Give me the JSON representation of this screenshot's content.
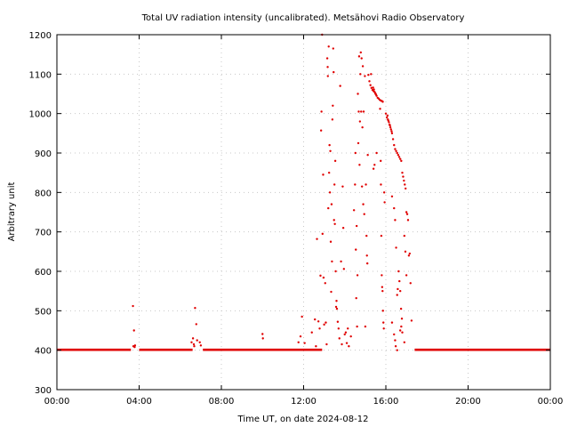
{
  "chart_data": {
    "type": "scatter",
    "title": "Total UV radiation intensity (uncalibrated). Metsähovi Radio Observatory",
    "xlabel": "Time UT, on date 2024-08-12",
    "ylabel": "Arbitrary unit",
    "xlim": [
      0,
      24
    ],
    "ylim": [
      300,
      1200
    ],
    "x_ticks": [
      0,
      4,
      8,
      12,
      16,
      20,
      24
    ],
    "x_tick_labels": [
      "00:00",
      "04:00",
      "08:00",
      "12:00",
      "16:00",
      "20:00",
      "00:00"
    ],
    "y_ticks": [
      300,
      400,
      500,
      600,
      700,
      800,
      900,
      1000,
      1100,
      1200
    ],
    "y_tick_labels": [
      "300",
      "400",
      "500",
      "600",
      "700",
      "800",
      "900",
      "1000",
      "1100",
      "1200"
    ],
    "grid": true,
    "marker_color": "#e00000",
    "baseline": {
      "y": 401,
      "segments": [
        [
          0,
          3.6
        ],
        [
          4.0,
          6.6
        ],
        [
          7.1,
          12.9
        ],
        [
          17.4,
          24
        ]
      ]
    },
    "points": [
      [
        3.7,
        512
      ],
      [
        3.75,
        450
      ],
      [
        3.72,
        410
      ],
      [
        3.78,
        408
      ],
      [
        3.8,
        412
      ],
      [
        6.55,
        420
      ],
      [
        6.62,
        430
      ],
      [
        6.66,
        415
      ],
      [
        6.68,
        410
      ],
      [
        6.72,
        507
      ],
      [
        6.78,
        466
      ],
      [
        6.82,
        425
      ],
      [
        6.95,
        420
      ],
      [
        7.0,
        412
      ],
      [
        10.0,
        441
      ],
      [
        10.02,
        430
      ],
      [
        11.75,
        420
      ],
      [
        11.85,
        435
      ],
      [
        11.92,
        485
      ],
      [
        12.05,
        418
      ],
      [
        12.4,
        445
      ],
      [
        12.55,
        478
      ],
      [
        12.6,
        410
      ],
      [
        12.65,
        682
      ],
      [
        12.72,
        473
      ],
      [
        12.78,
        455
      ],
      [
        12.82,
        589
      ],
      [
        12.85,
        957
      ],
      [
        12.87,
        1005
      ],
      [
        12.9,
        1200
      ],
      [
        12.92,
        695
      ],
      [
        12.95,
        845
      ],
      [
        12.97,
        584
      ],
      [
        13.0,
        465
      ],
      [
        13.05,
        570
      ],
      [
        13.08,
        470
      ],
      [
        13.12,
        415
      ],
      [
        13.15,
        1140
      ],
      [
        13.17,
        1118
      ],
      [
        13.18,
        1095
      ],
      [
        13.2,
        760
      ],
      [
        13.22,
        1170
      ],
      [
        13.24,
        850
      ],
      [
        13.26,
        920
      ],
      [
        13.28,
        800
      ],
      [
        13.3,
        905
      ],
      [
        13.32,
        675
      ],
      [
        13.34,
        548
      ],
      [
        13.36,
        770
      ],
      [
        13.38,
        625
      ],
      [
        13.4,
        985
      ],
      [
        13.42,
        1020
      ],
      [
        13.44,
        1165
      ],
      [
        13.46,
        1105
      ],
      [
        13.48,
        730
      ],
      [
        13.5,
        820
      ],
      [
        13.52,
        720
      ],
      [
        13.54,
        880
      ],
      [
        13.56,
        600
      ],
      [
        13.58,
        510
      ],
      [
        13.6,
        525
      ],
      [
        13.62,
        505
      ],
      [
        13.66,
        472
      ],
      [
        13.7,
        455
      ],
      [
        13.74,
        430
      ],
      [
        13.78,
        1070
      ],
      [
        13.82,
        625
      ],
      [
        13.86,
        415
      ],
      [
        13.9,
        815
      ],
      [
        13.93,
        710
      ],
      [
        13.96,
        606
      ],
      [
        14.0,
        440
      ],
      [
        14.05,
        445
      ],
      [
        14.1,
        418
      ],
      [
        14.15,
        455
      ],
      [
        14.2,
        410
      ],
      [
        14.3,
        435
      ],
      [
        14.45,
        755
      ],
      [
        14.5,
        820
      ],
      [
        14.52,
        900
      ],
      [
        14.54,
        655
      ],
      [
        14.56,
        532
      ],
      [
        14.58,
        715
      ],
      [
        14.6,
        460
      ],
      [
        14.62,
        590
      ],
      [
        14.64,
        1050
      ],
      [
        14.66,
        925
      ],
      [
        14.68,
        1005
      ],
      [
        14.7,
        1145
      ],
      [
        14.72,
        870
      ],
      [
        14.74,
        980
      ],
      [
        14.76,
        1100
      ],
      [
        14.78,
        1155
      ],
      [
        14.8,
        1005
      ],
      [
        14.82,
        1140
      ],
      [
        14.84,
        815
      ],
      [
        14.86,
        965
      ],
      [
        14.88,
        1120
      ],
      [
        14.9,
        770
      ],
      [
        14.92,
        1005
      ],
      [
        14.95,
        745
      ],
      [
        14.98,
        1095
      ],
      [
        15.0,
        460
      ],
      [
        15.03,
        820
      ],
      [
        15.06,
        690
      ],
      [
        15.08,
        640
      ],
      [
        15.1,
        620
      ],
      [
        15.12,
        895
      ],
      [
        15.15,
        1098
      ],
      [
        15.2,
        1082
      ],
      [
        15.25,
        1072
      ],
      [
        15.3,
        1065
      ],
      [
        15.35,
        1060
      ],
      [
        15.4,
        1057
      ],
      [
        15.45,
        1055
      ],
      [
        15.5,
        1050
      ],
      [
        15.55,
        1045
      ],
      [
        15.6,
        1040
      ],
      [
        15.65,
        1038
      ],
      [
        15.7,
        1035
      ],
      [
        15.75,
        1033
      ],
      [
        15.8,
        1032
      ],
      [
        15.85,
        1030
      ],
      [
        15.28,
        1100
      ],
      [
        15.38,
        1066
      ],
      [
        15.42,
        1061
      ],
      [
        15.48,
        1052
      ],
      [
        15.52,
        1048
      ],
      [
        15.4,
        860
      ],
      [
        15.45,
        870
      ],
      [
        15.55,
        900
      ],
      [
        15.72,
        1012
      ],
      [
        15.75,
        880
      ],
      [
        15.76,
        820
      ],
      [
        15.78,
        690
      ],
      [
        15.8,
        590
      ],
      [
        15.82,
        560
      ],
      [
        15.84,
        550
      ],
      [
        15.86,
        500
      ],
      [
        15.88,
        470
      ],
      [
        15.9,
        455
      ],
      [
        15.92,
        800
      ],
      [
        15.94,
        775
      ],
      [
        16.0,
        1000
      ],
      [
        16.05,
        990
      ],
      [
        16.1,
        985
      ],
      [
        16.15,
        978
      ],
      [
        16.2,
        970
      ],
      [
        16.25,
        960
      ],
      [
        16.3,
        950
      ],
      [
        16.35,
        935
      ],
      [
        16.4,
        920
      ],
      [
        16.45,
        910
      ],
      [
        16.5,
        905
      ],
      [
        16.55,
        900
      ],
      [
        16.6,
        895
      ],
      [
        16.65,
        890
      ],
      [
        16.7,
        885
      ],
      [
        16.75,
        880
      ],
      [
        16.08,
        995
      ],
      [
        16.12,
        982
      ],
      [
        16.18,
        972
      ],
      [
        16.22,
        965
      ],
      [
        16.28,
        955
      ],
      [
        16.3,
        790
      ],
      [
        16.4,
        760
      ],
      [
        16.45,
        730
      ],
      [
        16.5,
        660
      ],
      [
        16.55,
        540
      ],
      [
        16.58,
        555
      ],
      [
        16.62,
        600
      ],
      [
        16.66,
        575
      ],
      [
        16.7,
        550
      ],
      [
        16.74,
        505
      ],
      [
        16.78,
        480
      ],
      [
        16.3,
        470
      ],
      [
        16.4,
        440
      ],
      [
        16.45,
        425
      ],
      [
        16.48,
        410
      ],
      [
        16.55,
        400
      ],
      [
        16.7,
        450
      ],
      [
        16.75,
        460
      ],
      [
        16.8,
        445
      ],
      [
        16.9,
        420
      ],
      [
        16.8,
        850
      ],
      [
        16.84,
        840
      ],
      [
        16.88,
        830
      ],
      [
        16.92,
        820
      ],
      [
        16.96,
        810
      ],
      [
        17.0,
        750
      ],
      [
        17.04,
        745
      ],
      [
        17.08,
        730
      ],
      [
        17.12,
        640
      ],
      [
        17.16,
        645
      ],
      [
        17.2,
        570
      ],
      [
        17.25,
        475
      ],
      [
        16.9,
        690
      ],
      [
        16.95,
        650
      ],
      [
        17.0,
        590
      ]
    ]
  }
}
